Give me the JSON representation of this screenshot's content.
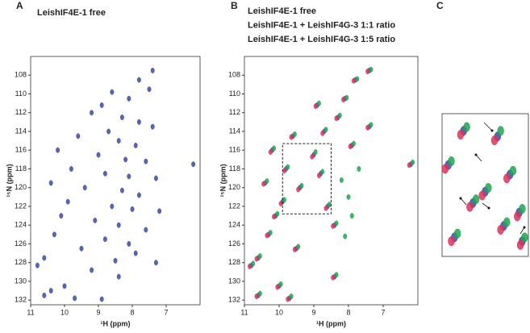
{
  "chart_data": [
    {
      "type": "scatter",
      "title": "A",
      "xlabel": "¹H (ppm)",
      "ylabel": "¹⁵N (ppm)",
      "xlim": [
        11,
        6
      ],
      "ylim": [
        106,
        132.5
      ],
      "xticks": [
        11,
        10,
        9,
        8,
        7
      ],
      "yticks": [
        108,
        110,
        112,
        114,
        116,
        118,
        120,
        122,
        124,
        126,
        128,
        130,
        132
      ],
      "series": [
        {
          "name": "LeishIF4E-1 free",
          "color": "#3b4ba3",
          "x": [
            7.4,
            7.8,
            7.5,
            8.1,
            8.6,
            8.9,
            9.2,
            8.3,
            7.8,
            7.4,
            8.7,
            9.6,
            8.4,
            7.9,
            10.2,
            9.0,
            8.2,
            7.6,
            6.2,
            9.8,
            8.8,
            8.1,
            7.3,
            10.4,
            9.4,
            8.3,
            7.8,
            9.9,
            8.6,
            8.0,
            7.2,
            10.1,
            9.1,
            8.4,
            7.6,
            10.3,
            8.8,
            8.1,
            9.5,
            7.9,
            10.6,
            8.5,
            7.3,
            10.8,
            9.2,
            8.4,
            10.0,
            10.4,
            9.7,
            10.6,
            8.9
          ],
          "values": [
            107.5,
            108.5,
            109.5,
            110.5,
            109.8,
            111.2,
            112,
            112.5,
            113,
            113.5,
            114,
            114.5,
            115,
            115.5,
            116,
            116.5,
            117,
            117.2,
            117.5,
            118,
            118.5,
            118.8,
            119,
            119.5,
            120,
            120.3,
            120.8,
            121.5,
            122,
            122.3,
            122.5,
            123,
            123.5,
            124,
            124.5,
            125,
            125.5,
            126,
            126.5,
            127,
            127.5,
            127.8,
            128,
            128.3,
            128.8,
            129.5,
            130.5,
            131,
            131.8,
            131.5,
            131.9
          ]
        }
      ]
    },
    {
      "type": "scatter",
      "title": "B",
      "xlabel": "¹H (ppm)",
      "ylabel": "¹⁵N (ppm)",
      "xlim": [
        11,
        6
      ],
      "ylim": [
        106,
        132.5
      ],
      "xticks": [
        11,
        10,
        9,
        8,
        7
      ],
      "yticks": [
        108,
        110,
        112,
        114,
        116,
        118,
        120,
        122,
        124,
        126,
        128,
        130,
        132
      ],
      "series": [
        {
          "name": "LeishIF4E-1 free",
          "color": "#3b4ba3",
          "x": [
            7.4,
            7.8,
            8.1,
            8.9,
            8.3,
            7.4,
            8.7,
            9.6,
            7.9,
            10.2,
            9.0,
            6.2,
            9.8,
            8.8,
            10.4,
            9.4,
            9.9,
            8.6,
            10.1,
            8.4,
            10.3,
            9.5,
            10.6,
            10.8,
            8.4,
            10.0,
            9.7,
            10.6
          ],
          "values": [
            107.5,
            108.5,
            110.5,
            111.2,
            112.5,
            113.5,
            114,
            114.5,
            115.5,
            116,
            116.5,
            117.5,
            118,
            118.5,
            119.5,
            120,
            121.5,
            122,
            123,
            124,
            125,
            126.5,
            127.5,
            128.3,
            129.5,
            130.5,
            131.8,
            131.5
          ]
        },
        {
          "name": "LeishIF4E-1 + LeishIF4G-3 1:1 ratio",
          "color": "#e0305a",
          "x": [
            7.45,
            7.85,
            8.15,
            8.95,
            8.35,
            7.45,
            8.75,
            9.65,
            7.95,
            10.25,
            9.05,
            6.25,
            9.85,
            8.85,
            10.45,
            9.45,
            9.95,
            8.65,
            10.15,
            8.45,
            10.35,
            9.55,
            10.65,
            10.85,
            8.45,
            10.05,
            9.75,
            10.65
          ],
          "values": [
            107.6,
            108.6,
            110.6,
            111.3,
            112.6,
            113.6,
            114.2,
            114.6,
            115.6,
            116.2,
            116.7,
            117.6,
            118.2,
            118.7,
            119.6,
            120.2,
            121.7,
            122.2,
            123.1,
            124.1,
            125.1,
            126.6,
            127.6,
            128.4,
            129.6,
            130.6,
            131.9,
            131.6
          ]
        },
        {
          "name": "LeishIF4E-1 + LeishIF4G-3 1:5 ratio",
          "color": "#1fa650",
          "x": [
            7.35,
            7.75,
            8.05,
            8.85,
            8.25,
            7.35,
            8.65,
            9.55,
            7.85,
            10.15,
            8.95,
            6.15,
            9.75,
            8.75,
            10.35,
            9.35,
            9.85,
            8.55,
            10.05,
            8.35,
            10.25,
            9.45,
            10.55,
            10.75,
            8.35,
            9.95,
            9.65,
            10.55,
            8.2,
            8.0,
            7.9,
            8.1,
            7.7
          ],
          "values": [
            107.4,
            108.4,
            110.4,
            111.0,
            112.3,
            113.3,
            113.8,
            114.3,
            115.3,
            115.8,
            116.2,
            117.3,
            117.8,
            118.3,
            119.3,
            119.8,
            121.3,
            121.8,
            122.8,
            123.8,
            124.8,
            126.3,
            127.3,
            128.1,
            129.3,
            130.3,
            131.6,
            131.3,
            119.2,
            121.0,
            123.0,
            125.2,
            118.0
          ]
        }
      ]
    },
    {
      "type": "scatter",
      "title": "C",
      "xlim": [
        9.9,
        8.5
      ],
      "ylim": [
        115.3,
        122.8
      ],
      "series": [
        {
          "color": "#3b4ba3",
          "x": [
            9.0,
            9.8,
            8.8,
            9.4,
            8.6,
            9.55,
            9.2,
            8.9,
            9.7,
            8.65
          ],
          "values": [
            116.5,
            118,
            118.5,
            120,
            122,
            116.2,
            119.4,
            121.2,
            121.8,
            120.5
          ]
        },
        {
          "color": "#e0305a",
          "x": [
            9.05,
            9.85,
            8.85,
            9.45,
            8.63,
            9.6,
            9.25,
            8.95,
            9.75,
            8.68
          ],
          "values": [
            116.7,
            118.2,
            118.7,
            120.2,
            122.2,
            116.4,
            119.6,
            121.4,
            122.0,
            120.7
          ]
        },
        {
          "color": "#1fa650",
          "x": [
            8.95,
            9.75,
            8.75,
            9.35,
            8.56,
            9.5,
            9.15,
            8.85,
            9.65,
            8.6
          ],
          "values": [
            116.2,
            117.8,
            118.3,
            119.8,
            121.8,
            116.0,
            119.2,
            121.0,
            121.6,
            120.3
          ]
        }
      ]
    }
  ]
}
